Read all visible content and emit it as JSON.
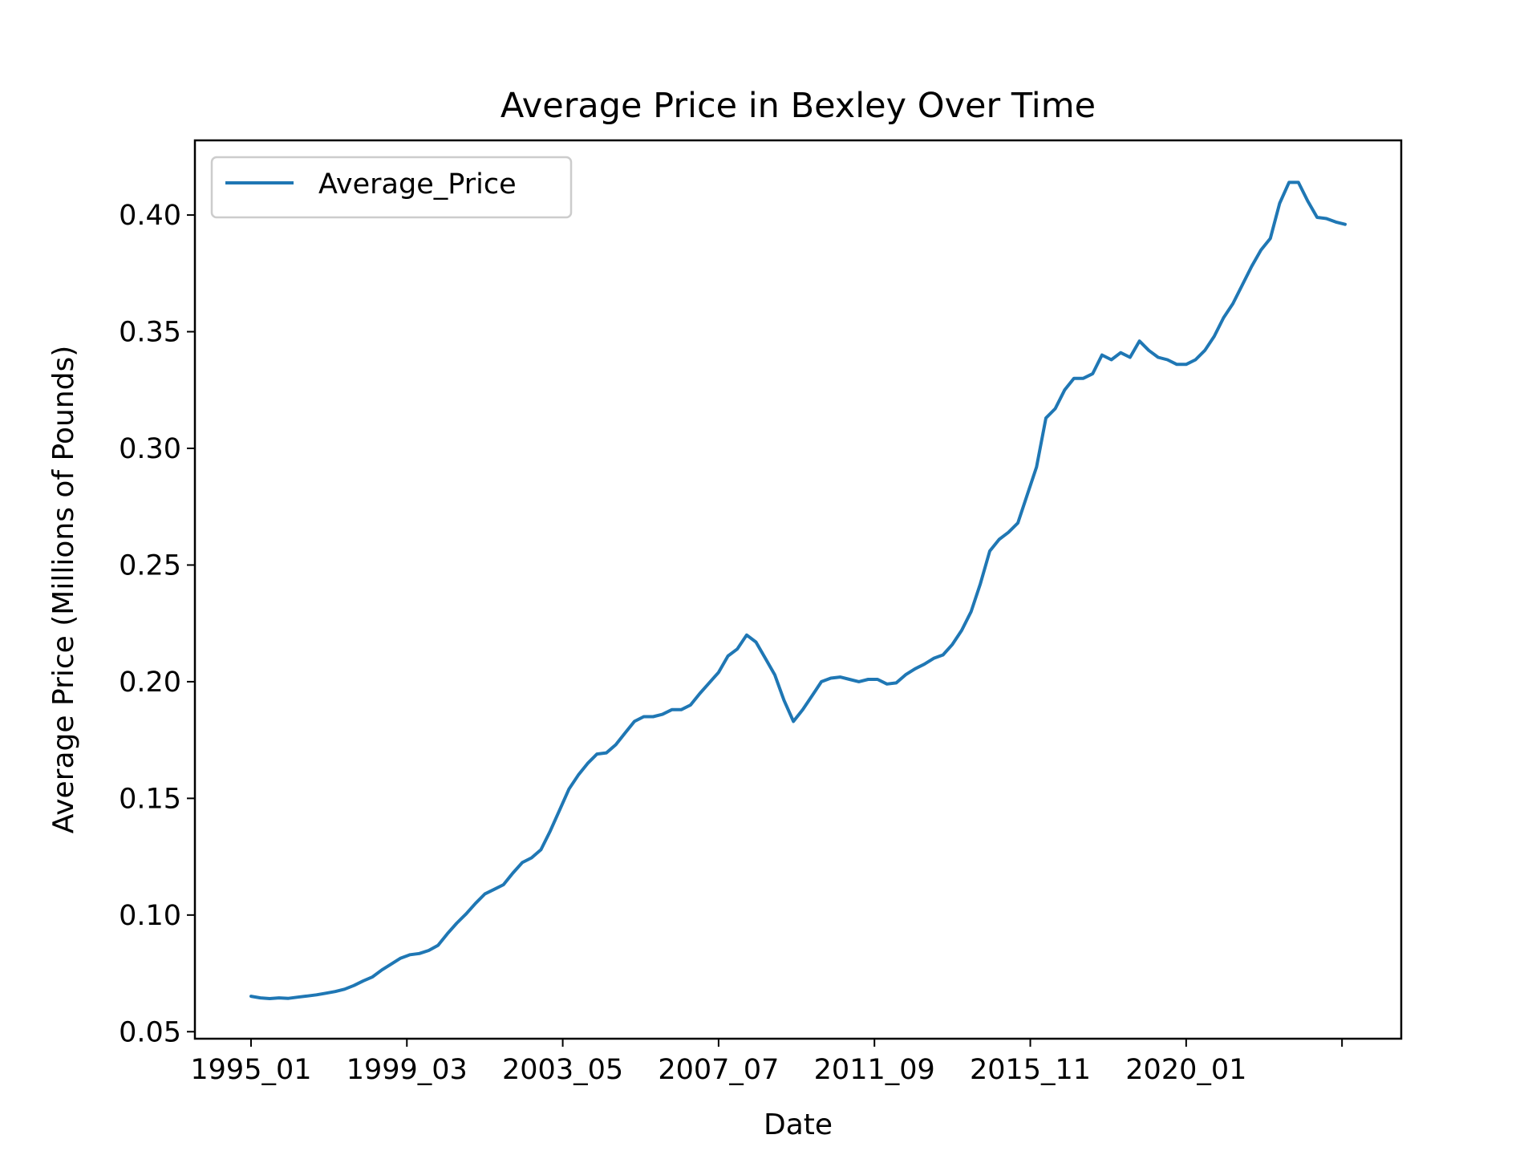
{
  "chart_data": {
    "type": "line",
    "title": "Average Price in Bexley Over Time",
    "xlabel": "Date",
    "ylabel": "Average Price (Millions of Pounds)",
    "x_tick_labels": [
      "1995_01",
      "1999_03",
      "2003_05",
      "2007_07",
      "2011_09",
      "2015_11",
      "2020_01",
      ""
    ],
    "y_ticks": [
      0.05,
      0.1,
      0.15,
      0.2,
      0.25,
      0.3,
      0.35,
      0.4
    ],
    "y_tick_labels": [
      "0.05",
      "0.10",
      "0.15",
      "0.20",
      "0.25",
      "0.30",
      "0.35",
      "0.40"
    ],
    "ylim": [
      0.047,
      0.432
    ],
    "xlim": [
      "1993_07",
      "2025_10"
    ],
    "legend": {
      "position": "top-left",
      "entries": [
        "Average_Price"
      ]
    },
    "grid": false,
    "color": "#1f77b4",
    "series": [
      {
        "name": "Average_Price",
        "points": [
          [
            "1995_01",
            0.0652
          ],
          [
            "1995_04",
            0.0645
          ],
          [
            "1995_07",
            0.0642
          ],
          [
            "1995_10",
            0.0645
          ],
          [
            "1996_01",
            0.0643
          ],
          [
            "1996_04",
            0.0648
          ],
          [
            "1996_07",
            0.0653
          ],
          [
            "1996_10",
            0.0658
          ],
          [
            "1997_01",
            0.0665
          ],
          [
            "1997_04",
            0.0672
          ],
          [
            "1997_07",
            0.0682
          ],
          [
            "1997_10",
            0.0698
          ],
          [
            "1998_01",
            0.0718
          ],
          [
            "1998_04",
            0.0735
          ],
          [
            "1998_07",
            0.0765
          ],
          [
            "1998_10",
            0.079
          ],
          [
            "1999_01",
            0.0815
          ],
          [
            "1999_04",
            0.083
          ],
          [
            "1999_07",
            0.0835
          ],
          [
            "1999_10",
            0.0848
          ],
          [
            "2000_01",
            0.087
          ],
          [
            "2000_04",
            0.092
          ],
          [
            "2000_07",
            0.0965
          ],
          [
            "2000_10",
            0.1005
          ],
          [
            "2001_01",
            0.105
          ],
          [
            "2001_04",
            0.109
          ],
          [
            "2001_07",
            0.111
          ],
          [
            "2001_10",
            0.113
          ],
          [
            "2002_01",
            0.118
          ],
          [
            "2002_04",
            0.1225
          ],
          [
            "2002_07",
            0.1245
          ],
          [
            "2002_10",
            0.128
          ],
          [
            "2003_01",
            0.136
          ],
          [
            "2003_04",
            0.145
          ],
          [
            "2003_07",
            0.154
          ],
          [
            "2003_10",
            0.16
          ],
          [
            "2004_01",
            0.165
          ],
          [
            "2004_04",
            0.169
          ],
          [
            "2004_07",
            0.1695
          ],
          [
            "2004_10",
            0.173
          ],
          [
            "2005_01",
            0.178
          ],
          [
            "2005_04",
            0.183
          ],
          [
            "2005_07",
            0.185
          ],
          [
            "2005_10",
            0.185
          ],
          [
            "2006_01",
            0.186
          ],
          [
            "2006_04",
            0.188
          ],
          [
            "2006_07",
            0.188
          ],
          [
            "2006_10",
            0.19
          ],
          [
            "2007_01",
            0.195
          ],
          [
            "2007_04",
            0.1995
          ],
          [
            "2007_07",
            0.204
          ],
          [
            "2007_10",
            0.211
          ],
          [
            "2008_01",
            0.214
          ],
          [
            "2008_04",
            0.22
          ],
          [
            "2008_07",
            0.217
          ],
          [
            "2008_10",
            0.21
          ],
          [
            "2009_01",
            0.203
          ],
          [
            "2009_04",
            0.192
          ],
          [
            "2009_07",
            0.183
          ],
          [
            "2009_10",
            0.188
          ],
          [
            "2010_01",
            0.194
          ],
          [
            "2010_04",
            0.2
          ],
          [
            "2010_07",
            0.2015
          ],
          [
            "2010_10",
            0.202
          ],
          [
            "2011_01",
            0.201
          ],
          [
            "2011_04",
            0.2
          ],
          [
            "2011_07",
            0.201
          ],
          [
            "2011_10",
            0.201
          ],
          [
            "2012_01",
            0.199
          ],
          [
            "2012_04",
            0.1995
          ],
          [
            "2012_07",
            0.203
          ],
          [
            "2012_10",
            0.2055
          ],
          [
            "2013_01",
            0.2075
          ],
          [
            "2013_04",
            0.21
          ],
          [
            "2013_07",
            0.2115
          ],
          [
            "2013_10",
            0.216
          ],
          [
            "2014_01",
            0.222
          ],
          [
            "2014_04",
            0.23
          ],
          [
            "2014_07",
            0.242
          ],
          [
            "2014_10",
            0.256
          ],
          [
            "2015_01",
            0.261
          ],
          [
            "2015_04",
            0.264
          ],
          [
            "2015_07",
            0.268
          ],
          [
            "2015_10",
            0.28
          ],
          [
            "2016_01",
            0.292
          ],
          [
            "2016_04",
            0.313
          ],
          [
            "2016_07",
            0.317
          ],
          [
            "2016_10",
            0.325
          ],
          [
            "2017_01",
            0.33
          ],
          [
            "2017_04",
            0.33
          ],
          [
            "2017_07",
            0.332
          ],
          [
            "2017_10",
            0.34
          ],
          [
            "2018_01",
            0.338
          ],
          [
            "2018_04",
            0.341
          ],
          [
            "2018_07",
            0.339
          ],
          [
            "2018_10",
            0.346
          ],
          [
            "2019_01",
            0.342
          ],
          [
            "2019_04",
            0.339
          ],
          [
            "2019_07",
            0.338
          ],
          [
            "2019_10",
            0.336
          ],
          [
            "2020_01",
            0.336
          ],
          [
            "2020_04",
            0.338
          ],
          [
            "2020_07",
            0.342
          ],
          [
            "2020_10",
            0.348
          ],
          [
            "2021_01",
            0.356
          ],
          [
            "2021_04",
            0.362
          ],
          [
            "2021_07",
            0.37
          ],
          [
            "2021_10",
            0.378
          ],
          [
            "2022_01",
            0.385
          ],
          [
            "2022_04",
            0.39
          ],
          [
            "2022_07",
            0.405
          ],
          [
            "2022_10",
            0.414
          ],
          [
            "2023_01",
            0.414
          ],
          [
            "2023_04",
            0.406
          ],
          [
            "2023_07",
            0.399
          ],
          [
            "2023_10",
            0.3985
          ],
          [
            "2024_01",
            0.397
          ],
          [
            "2024_04",
            0.396
          ]
        ]
      }
    ]
  }
}
